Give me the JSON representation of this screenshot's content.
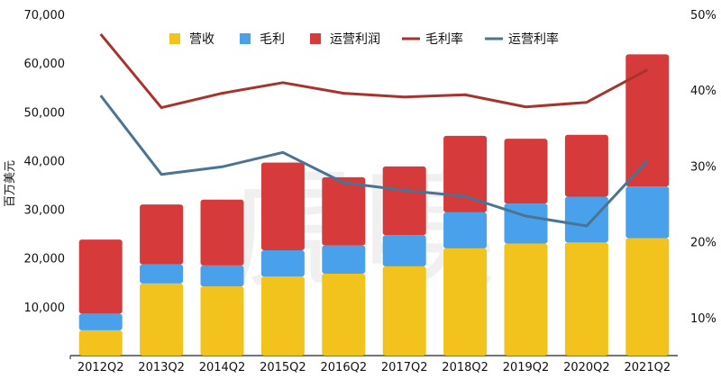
{
  "chart_data": {
    "type": "bar",
    "stacked_bars": true,
    "categories": [
      "2012Q2",
      "2013Q2",
      "2014Q2",
      "2015Q2",
      "2016Q2",
      "2017Q2",
      "2018Q2",
      "2019Q2",
      "2020Q2",
      "2021Q2"
    ],
    "y_axis_label": "百万美元",
    "y_ticks": [
      "10,000",
      "20,000",
      "30,000",
      "40,000",
      "50,000",
      "60,000",
      "70,000"
    ],
    "y2_ticks": [
      "10%",
      "20%",
      "30%",
      "40%",
      "50%"
    ],
    "ylim": [
      0,
      70000
    ],
    "y2lim": [
      5,
      50
    ],
    "grid": false,
    "legend_position": "top-center",
    "series": [
      {
        "name": "营收",
        "kind": "bar",
        "axis": "left",
        "color": "#f2c21d",
        "values": [
          5200,
          14800,
          14200,
          16200,
          16800,
          18300,
          22000,
          23000,
          23200,
          24100
        ]
      },
      {
        "name": "毛利",
        "kind": "bar",
        "axis": "left",
        "color": "#4aa1eb",
        "values": [
          3400,
          3900,
          4300,
          5400,
          5800,
          6400,
          7400,
          8200,
          9400,
          10600
        ]
      },
      {
        "name": "运营利润",
        "kind": "bar",
        "axis": "left",
        "color": "#d63a3a",
        "values": [
          15200,
          12300,
          13500,
          18000,
          14000,
          14100,
          15700,
          13300,
          12700,
          27100
        ]
      },
      {
        "name": "毛利率",
        "kind": "line",
        "axis": "right",
        "color": "#a8332c",
        "values": [
          47.4,
          37.7,
          39.6,
          41.0,
          39.6,
          39.1,
          39.4,
          37.8,
          38.4,
          42.7
        ]
      },
      {
        "name": "运营利率",
        "kind": "line",
        "axis": "right",
        "color": "#4a7394",
        "values": [
          39.3,
          28.9,
          29.9,
          31.8,
          27.8,
          26.8,
          26.0,
          23.4,
          22.1,
          30.7
        ]
      }
    ]
  }
}
